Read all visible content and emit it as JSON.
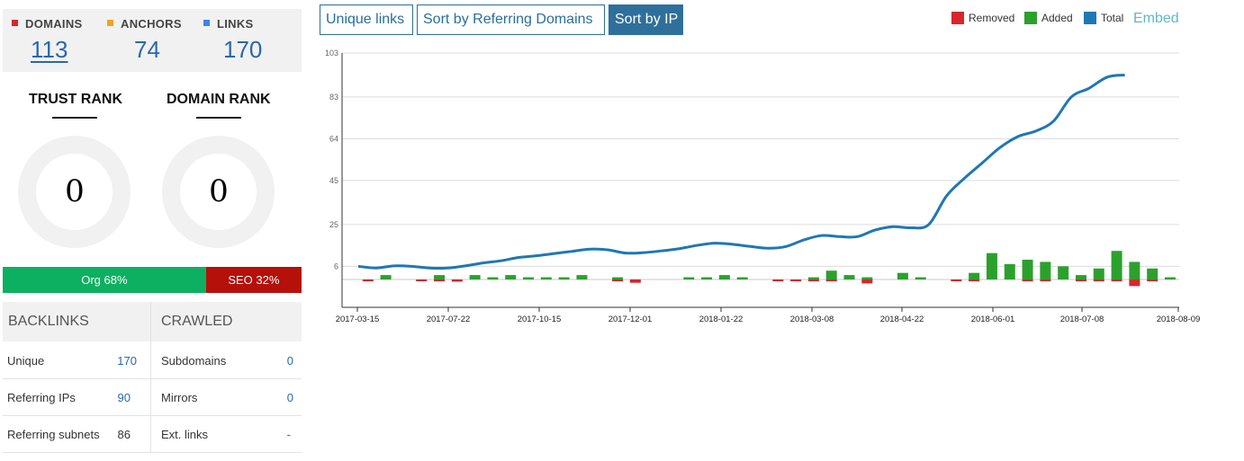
{
  "stats": {
    "domains": {
      "label": "DOMAINS",
      "value": "113",
      "color": "#d9262c"
    },
    "anchors": {
      "label": "ANCHORS",
      "value": "74",
      "color": "#f2a31b"
    },
    "links": {
      "label": "LINKS",
      "value": "170",
      "color": "#3b82f6"
    }
  },
  "ranks": {
    "trust": {
      "title": "TRUST RANK",
      "value": "0"
    },
    "domain": {
      "title": "DOMAIN RANK",
      "value": "0"
    }
  },
  "split": {
    "org": "Org 68%",
    "seo": "SEO 32%",
    "org_pct": 68,
    "seo_pct": 32,
    "org_color": "#0db060",
    "seo_color": "#b5100a"
  },
  "backlinks": {
    "title": "BACKLINKS",
    "rows": [
      {
        "label": "Unique",
        "value": "170"
      },
      {
        "label": "Referring IPs",
        "value": "90"
      },
      {
        "label": "Referring subnets",
        "value": "86"
      }
    ]
  },
  "crawled": {
    "title": "CRAWLED",
    "rows": [
      {
        "label": "Subdomains",
        "value": "0"
      },
      {
        "label": "Mirrors",
        "value": "0"
      },
      {
        "label": "Ext. links",
        "value": "-"
      }
    ]
  },
  "toolbar": {
    "unique_links": "Unique links",
    "sort_referring": "Sort by Referring Domains",
    "sort_ip": "Sort by IP",
    "active": "sort_ip"
  },
  "legend": {
    "removed": "Removed",
    "added": "Added",
    "total": "Total",
    "embed": "Embed",
    "colors": {
      "removed": "#d9262c",
      "added": "#2ca02c",
      "total": "#1f77b4"
    }
  },
  "chart_data": {
    "type": "line",
    "ylim": [
      0,
      103
    ],
    "yticks": [
      6,
      25,
      45,
      64,
      83,
      103
    ],
    "xticks": [
      "2017-03-15",
      "2017-07-22",
      "2017-10-15",
      "2017-12-01",
      "2018-01-22",
      "2018-03-08",
      "2018-04-22",
      "2018-06-01",
      "2018-07-08",
      "2018-08-09"
    ],
    "grid": true,
    "legend_position": "top-right",
    "series": [
      {
        "name": "Total",
        "points": [
          [
            0,
            6
          ],
          [
            1,
            5.2
          ],
          [
            2,
            6.2
          ],
          [
            3,
            6
          ],
          [
            4,
            5.2
          ],
          [
            5,
            5.2
          ],
          [
            6,
            6.2
          ],
          [
            7,
            7.5
          ],
          [
            8,
            8.5
          ],
          [
            9,
            10
          ],
          [
            10,
            10.8
          ],
          [
            11,
            11.8
          ],
          [
            12,
            12.8
          ],
          [
            13,
            13.8
          ],
          [
            14,
            13.5
          ],
          [
            15,
            12
          ],
          [
            16,
            12.2
          ],
          [
            17,
            13
          ],
          [
            18,
            14
          ],
          [
            19,
            15.5
          ],
          [
            20,
            16.5
          ],
          [
            21,
            16
          ],
          [
            22,
            15
          ],
          [
            23,
            14.2
          ],
          [
            24,
            15
          ],
          [
            25,
            18
          ],
          [
            26,
            20
          ],
          [
            27,
            19.5
          ],
          [
            28,
            19.5
          ],
          [
            29,
            22.5
          ],
          [
            30,
            24
          ],
          [
            31,
            23.5
          ],
          [
            32,
            25
          ],
          [
            33,
            38
          ],
          [
            34,
            46
          ],
          [
            35,
            53
          ],
          [
            36,
            60
          ],
          [
            37,
            65
          ],
          [
            38,
            67.5
          ],
          [
            39,
            72
          ],
          [
            40,
            83
          ],
          [
            41,
            87
          ],
          [
            42,
            92
          ],
          [
            43,
            93
          ]
        ]
      },
      {
        "name": "Added",
        "points": [
          [
            2,
            2
          ],
          [
            5,
            2
          ],
          [
            7,
            2
          ],
          [
            8,
            1
          ],
          [
            9,
            2
          ],
          [
            10,
            1
          ],
          [
            11,
            1
          ],
          [
            12,
            1
          ],
          [
            13,
            2
          ],
          [
            15,
            1
          ],
          [
            19,
            1
          ],
          [
            20,
            1
          ],
          [
            21,
            2
          ],
          [
            22,
            1
          ],
          [
            26,
            1
          ],
          [
            27,
            4
          ],
          [
            28,
            2
          ],
          [
            29,
            1
          ],
          [
            31,
            3
          ],
          [
            32,
            1
          ],
          [
            35,
            3
          ],
          [
            36,
            12
          ],
          [
            37,
            7
          ],
          [
            38,
            9
          ],
          [
            39,
            8
          ],
          [
            40,
            6
          ],
          [
            41,
            2
          ],
          [
            42,
            5
          ],
          [
            43,
            13
          ],
          [
            44,
            8
          ],
          [
            45,
            5
          ],
          [
            46,
            1
          ]
        ]
      },
      {
        "name": "Removed",
        "points": [
          [
            1,
            -0.8
          ],
          [
            4,
            -0.8
          ],
          [
            5,
            -0.8
          ],
          [
            6,
            -1
          ],
          [
            15,
            -0.8
          ],
          [
            16,
            -1.5
          ],
          [
            24,
            -0.8
          ],
          [
            25,
            -0.8
          ],
          [
            26,
            -0.8
          ],
          [
            27,
            -0.8
          ],
          [
            29,
            -1.8
          ],
          [
            34,
            -0.8
          ],
          [
            35,
            -0.8
          ],
          [
            38,
            -0.8
          ],
          [
            39,
            -0.8
          ],
          [
            41,
            -0.8
          ],
          [
            42,
            -0.8
          ],
          [
            43,
            -0.8
          ],
          [
            44,
            -3
          ],
          [
            45,
            -0.3
          ]
        ]
      }
    ]
  }
}
